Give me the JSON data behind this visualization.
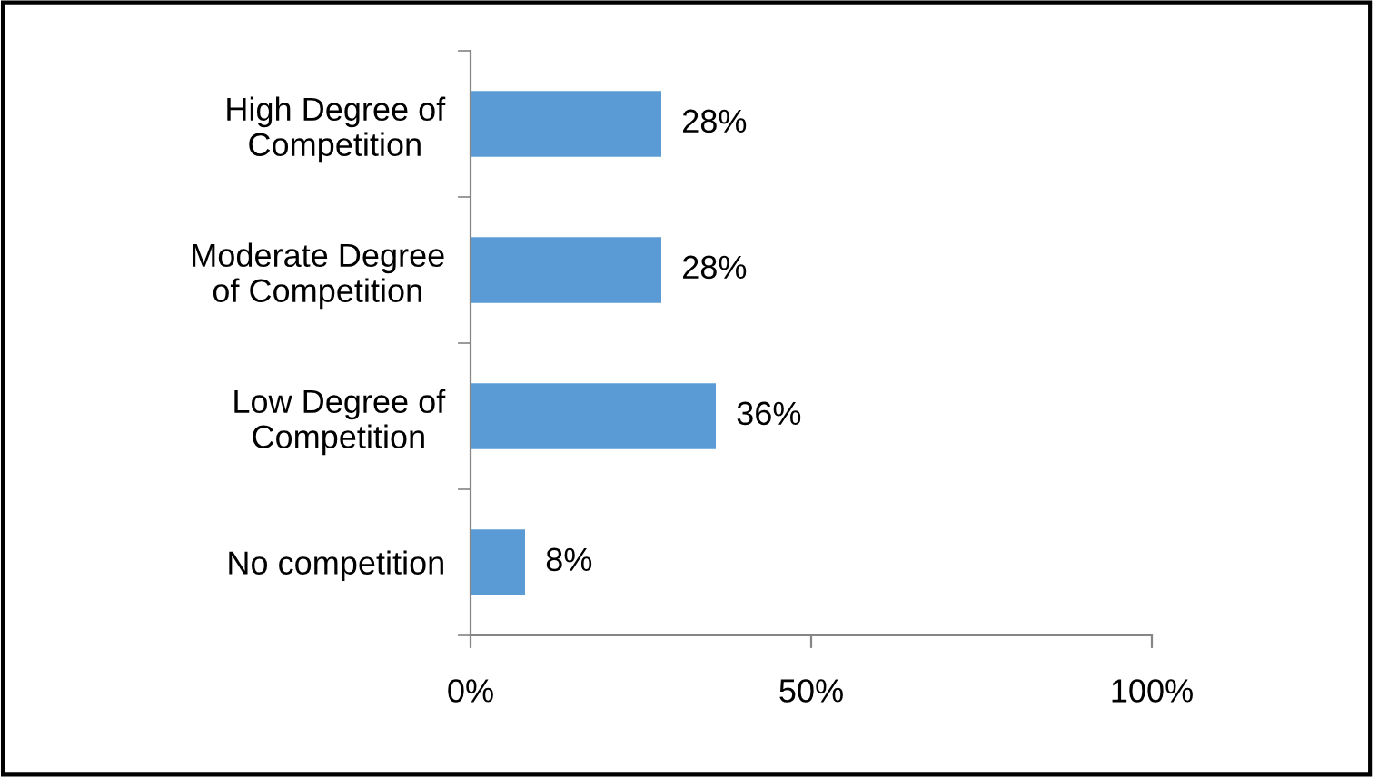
{
  "chart_data": {
    "type": "bar",
    "orientation": "horizontal",
    "categories": [
      "High Degree of Competition",
      "Moderate Degree of Competition",
      "Low Degree of Competition",
      "No competition"
    ],
    "values": [
      28,
      28,
      36,
      8
    ],
    "value_labels": [
      "28%",
      "28%",
      "36%",
      "8%"
    ],
    "color": "#5b9bd5",
    "xlim": [
      0,
      100
    ],
    "xticks": [
      {
        "value": 0,
        "label": "0%"
      },
      {
        "value": 50,
        "label": "50%"
      },
      {
        "value": 100,
        "label": "100%"
      }
    ],
    "grid": false,
    "legend": false
  }
}
